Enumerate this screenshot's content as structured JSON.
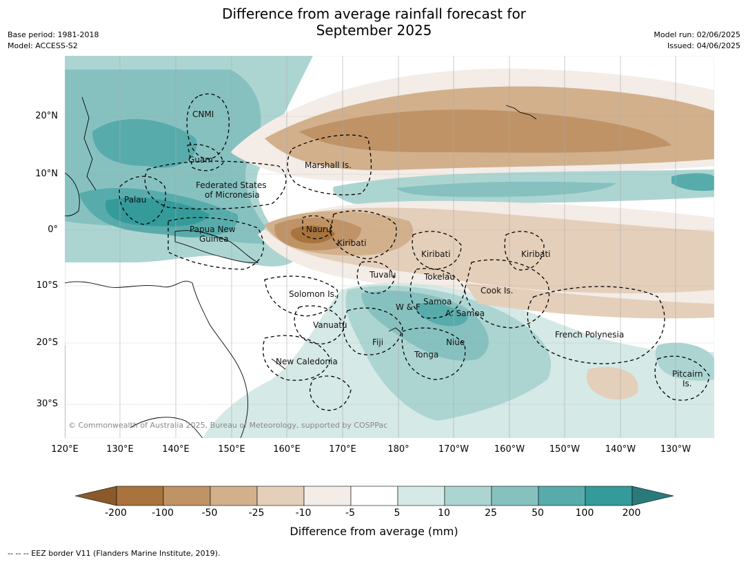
{
  "title": {
    "line1": "Difference from average rainfall forecast for",
    "line2": "September 2025"
  },
  "meta": {
    "base_period": "Base period: 1981-2018",
    "model": "Model: ACCESS-S2",
    "model_run": "Model run: 02/06/2025",
    "issued": "Issued: 04/06/2025"
  },
  "map": {
    "lat_labels": [
      "20°N",
      "10°N",
      "0°",
      "10°S",
      "20°S",
      "30°S"
    ],
    "lon_labels": [
      "120°E",
      "130°E",
      "140°E",
      "150°E",
      "160°E",
      "170°E",
      "180°",
      "170°W",
      "160°W",
      "150°W",
      "140°W",
      "130°W"
    ],
    "places": [
      {
        "name": "CNMI"
      },
      {
        "name": "Guam"
      },
      {
        "name": "Marshall Is."
      },
      {
        "name": "Federated States"
      },
      {
        "name": "of Micronesia"
      },
      {
        "name": "Palau"
      },
      {
        "name": "Papua New"
      },
      {
        "name": "Guinea"
      },
      {
        "name": "Nauru"
      },
      {
        "name": "Kiribati"
      },
      {
        "name": "Kiribati"
      },
      {
        "name": "Kiribati"
      },
      {
        "name": "Tuvalu"
      },
      {
        "name": "Tokelau"
      },
      {
        "name": "Cook Is."
      },
      {
        "name": "Solomon Is."
      },
      {
        "name": "Samoa"
      },
      {
        "name": "W & F"
      },
      {
        "name": "A. Samoa"
      },
      {
        "name": "Vanuatu"
      },
      {
        "name": "Fiji"
      },
      {
        "name": "Niue"
      },
      {
        "name": "Tonga"
      },
      {
        "name": "French Polynesia"
      },
      {
        "name": "New Caledonia"
      },
      {
        "name": "Pitcairn"
      },
      {
        "name": "Is."
      }
    ],
    "copyright": "© Commonwealth of Australia 2025, Bureau of Meteorology, supported by COSPPac"
  },
  "colorbar": {
    "labels": [
      "-200",
      "-100",
      "-50",
      "-25",
      "-10",
      "-5",
      "5",
      "10",
      "25",
      "50",
      "100",
      "200"
    ],
    "colors": [
      "#8b5a2b",
      "#a8733c",
      "#bf9366",
      "#d2b08c",
      "#e4cfba",
      "#f4ece6",
      "#ffffff",
      "#d5e9e6",
      "#acd5d2",
      "#86c1c0",
      "#57acab",
      "#349b9a",
      "#2a7a7a"
    ],
    "title": "Difference from average (mm)"
  },
  "footer": "--  --  -- EEZ border V11 (Flanders Marine Institute, 2019)."
}
